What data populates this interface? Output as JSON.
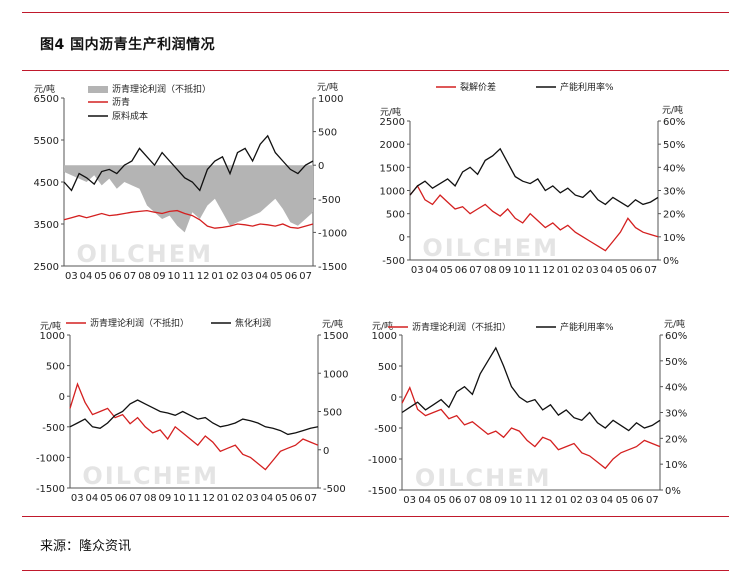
{
  "figure_title": "图4 国内沥青生产利润情况",
  "source": "来源：隆众资讯",
  "watermark": "OILCHEM",
  "months": [
    "03",
    "04",
    "05",
    "06",
    "07",
    "08",
    "09",
    "10",
    "11",
    "12",
    "01",
    "02",
    "03",
    "04",
    "05",
    "06",
    "07"
  ],
  "colors": {
    "red": "#d42020",
    "black": "#111111",
    "gray": "#b4b4b4",
    "rule": "#c0192c"
  },
  "chart_data": [
    {
      "type": "line",
      "panel": "top-left",
      "title": "",
      "xlabel": "",
      "left_axis": {
        "ylim": [
          2500,
          6500
        ],
        "ticks": [
          "2500",
          "3500",
          "4500",
          "5500",
          "6500"
        ],
        "unit": "元/吨"
      },
      "right_axis": {
        "ylim": [
          -1500,
          1000
        ],
        "ticks": [
          "-1500",
          "-1000",
          "-500",
          "0",
          "500",
          "1000"
        ],
        "unit": "元/吨"
      },
      "legend": [
        "沥青理论利润（不抵扣）",
        "沥青",
        "原料成本"
      ],
      "x_months": 17,
      "series": [
        {
          "name": "沥青理论利润（不抵扣）",
          "axis": "right",
          "style": "area",
          "color": "#b4b4b4",
          "values": [
            -100,
            -150,
            -200,
            -250,
            -150,
            -300,
            -200,
            -350,
            -250,
            -300,
            -350,
            -600,
            -700,
            -800,
            -750,
            -900,
            -1000,
            -700,
            -800,
            -600,
            -500,
            -700,
            -900,
            -850,
            -800,
            -750,
            -700,
            -600,
            -500,
            -650,
            -850,
            -900,
            -800,
            -700
          ]
        },
        {
          "name": "沥青",
          "axis": "left",
          "style": "line",
          "color": "#d42020",
          "values": [
            3600,
            3650,
            3700,
            3650,
            3700,
            3750,
            3700,
            3720,
            3750,
            3780,
            3800,
            3820,
            3780,
            3750,
            3800,
            3820,
            3750,
            3700,
            3600,
            3450,
            3400,
            3420,
            3450,
            3500,
            3480,
            3450,
            3500,
            3480,
            3450,
            3500,
            3420,
            3400,
            3450,
            3500
          ]
        },
        {
          "name": "原料成本",
          "axis": "left",
          "style": "line",
          "color": "#111111",
          "values": [
            4500,
            4300,
            4700,
            4600,
            4450,
            4750,
            4800,
            4700,
            4900,
            5000,
            5300,
            5100,
            4900,
            5200,
            5000,
            4800,
            4600,
            4500,
            4300,
            4800,
            5000,
            5100,
            4700,
            5200,
            5300,
            5000,
            5400,
            5600,
            5200,
            5000,
            4800,
            4700,
            4900,
            5000
          ]
        }
      ]
    },
    {
      "type": "line",
      "panel": "top-right",
      "title": "",
      "xlabel": "",
      "left_axis": {
        "ylim": [
          -500,
          2500
        ],
        "ticks": [
          "-500",
          "0",
          "500",
          "1000",
          "1500",
          "2000",
          "2500"
        ],
        "unit": "元/吨"
      },
      "right_axis": {
        "ylim": [
          0,
          60
        ],
        "ticks": [
          "0%",
          "10%",
          "20%",
          "30%",
          "40%",
          "50%",
          "60%"
        ],
        "unit": "元/吨"
      },
      "legend": [
        "裂解价差",
        "产能利用率%"
      ],
      "x_months": 17,
      "series": [
        {
          "name": "裂解价差",
          "axis": "left",
          "style": "line",
          "color": "#d42020",
          "values": [
            900,
            1100,
            800,
            700,
            900,
            750,
            600,
            650,
            500,
            600,
            700,
            550,
            450,
            600,
            400,
            300,
            500,
            350,
            200,
            300,
            150,
            250,
            100,
            0,
            -100,
            -200,
            -300,
            -100,
            100,
            400,
            200,
            100,
            50,
            0
          ]
        },
        {
          "name": "产能利用率%",
          "axis": "right",
          "style": "line",
          "color": "#111111",
          "values": [
            28,
            32,
            34,
            31,
            33,
            35,
            32,
            38,
            40,
            37,
            43,
            45,
            48,
            42,
            36,
            34,
            33,
            35,
            30,
            32,
            29,
            31,
            28,
            27,
            30,
            26,
            24,
            27,
            25,
            23,
            26,
            24,
            25,
            27
          ]
        }
      ]
    },
    {
      "type": "line",
      "panel": "bottom-left",
      "title": "",
      "xlabel": "",
      "left_axis": {
        "ylim": [
          -1500,
          1000
        ],
        "ticks": [
          "-1500",
          "-1000",
          "-500",
          "0",
          "500",
          "1000"
        ],
        "unit": "元/吨"
      },
      "right_axis": {
        "ylim": [
          -500,
          1500
        ],
        "ticks": [
          "-500",
          "0",
          "500",
          "1000",
          "1500"
        ],
        "unit": "元/吨"
      },
      "legend": [
        "沥青理论利润（不抵扣）",
        "焦化利润"
      ],
      "x_months": 17,
      "series": [
        {
          "name": "沥青理论利润（不抵扣）",
          "axis": "left",
          "style": "line",
          "color": "#d42020",
          "values": [
            -200,
            200,
            -100,
            -300,
            -250,
            -200,
            -350,
            -300,
            -450,
            -350,
            -500,
            -600,
            -550,
            -700,
            -500,
            -600,
            -700,
            -800,
            -650,
            -750,
            -900,
            -850,
            -800,
            -950,
            -1000,
            -1100,
            -1200,
            -1050,
            -900,
            -850,
            -800,
            -700,
            -750,
            -800
          ]
        },
        {
          "name": "焦化利润",
          "axis": "right",
          "style": "line",
          "color": "#111111",
          "values": [
            300,
            350,
            400,
            300,
            280,
            350,
            450,
            500,
            600,
            650,
            600,
            550,
            500,
            480,
            450,
            500,
            450,
            400,
            420,
            350,
            300,
            320,
            350,
            400,
            380,
            350,
            300,
            280,
            250,
            200,
            220,
            250,
            280,
            300
          ]
        }
      ]
    },
    {
      "type": "line",
      "panel": "bottom-right",
      "title": "",
      "xlabel": "",
      "left_axis": {
        "ylim": [
          -1500,
          1000
        ],
        "ticks": [
          "-1500",
          "-1000",
          "-500",
          "0",
          "500",
          "1000"
        ],
        "unit": "元/吨"
      },
      "right_axis": {
        "ylim": [
          0,
          60
        ],
        "ticks": [
          "0%",
          "10%",
          "20%",
          "30%",
          "40%",
          "50%",
          "60%"
        ],
        "unit": "元/吨"
      },
      "legend": [
        "沥青理论利润（不抵扣）",
        "产能利用率%"
      ],
      "x_months": 17,
      "series": [
        {
          "name": "沥青理论利润（不抵扣）",
          "axis": "left",
          "style": "line",
          "color": "#d42020",
          "values": [
            -100,
            150,
            -200,
            -300,
            -250,
            -200,
            -350,
            -300,
            -450,
            -400,
            -500,
            -600,
            -550,
            -650,
            -500,
            -550,
            -700,
            -800,
            -650,
            -700,
            -850,
            -800,
            -750,
            -900,
            -950,
            -1050,
            -1150,
            -1000,
            -900,
            -850,
            -800,
            -700,
            -750,
            -800
          ]
        },
        {
          "name": "产能利用率%",
          "axis": "right",
          "style": "line",
          "color": "#111111",
          "values": [
            30,
            32,
            34,
            31,
            33,
            35,
            32,
            38,
            40,
            37,
            45,
            50,
            55,
            48,
            40,
            36,
            34,
            35,
            31,
            33,
            29,
            31,
            28,
            27,
            30,
            26,
            24,
            27,
            25,
            23,
            26,
            24,
            25,
            27
          ]
        }
      ]
    }
  ]
}
